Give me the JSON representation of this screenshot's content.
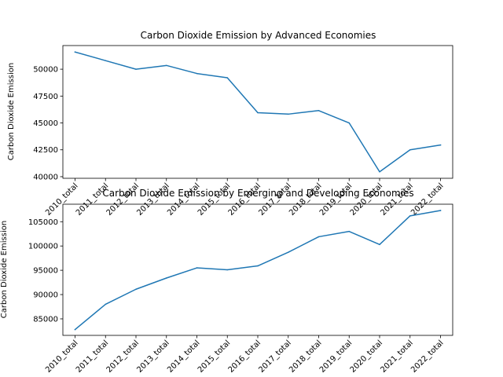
{
  "chart_data": [
    {
      "type": "line",
      "title": "Carbon Dioxide Emission by Advanced Economies",
      "xlabel": "",
      "ylabel": "Carbon Dioxide Emission",
      "categories": [
        "2010_total",
        "2011_total",
        "2012_total",
        "2013_total",
        "2014_total",
        "2015_total",
        "2016_total",
        "2017_total",
        "2018_total",
        "2019_total",
        "2020_total",
        "2021_total",
        "2022_total"
      ],
      "yticks": [
        "40000",
        "42500",
        "45000",
        "47500",
        "50000"
      ],
      "ylim": [
        39850,
        52200
      ],
      "grid": false,
      "series": [
        {
          "name": "",
          "color": "#1f77b4",
          "values": [
            51600,
            50800,
            50000,
            50350,
            49600,
            49200,
            45950,
            45820,
            46150,
            45000,
            40450,
            42500,
            42950
          ]
        }
      ]
    },
    {
      "type": "line",
      "title": "Carbon Dioxide Emission by Emerging and Developing Economies",
      "xlabel": "",
      "ylabel": "Carbon Dioxide Emission",
      "categories": [
        "2010_total",
        "2011_total",
        "2012_total",
        "2013_total",
        "2014_total",
        "2015_total",
        "2016_total",
        "2017_total",
        "2018_total",
        "2019_total",
        "2020_total",
        "2021_total",
        "2022_total"
      ],
      "yticks": [
        "85000",
        "90000",
        "95000",
        "100000",
        "105000"
      ],
      "ylim": [
        81600,
        108600
      ],
      "grid": false,
      "series": [
        {
          "name": "",
          "color": "#1f77b4",
          "values": [
            82800,
            88000,
            91100,
            93400,
            95500,
            95100,
            95900,
            98700,
            101900,
            103000,
            100300,
            106200,
            107300
          ]
        }
      ]
    }
  ]
}
